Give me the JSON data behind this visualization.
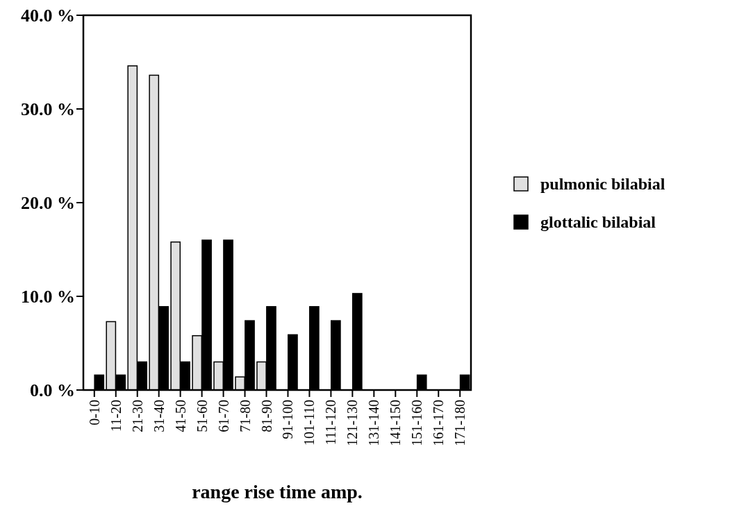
{
  "chart_data": {
    "type": "bar",
    "xlabel": "range rise time amp.",
    "categories": [
      "0-10",
      "11-20",
      "21-30",
      "31-40",
      "41-50",
      "51-60",
      "61-70",
      "71-80",
      "81-90",
      "91-100",
      "101-110",
      "111-120",
      "121-130",
      "131-140",
      "141-150",
      "151-160",
      "161-170",
      "171-180"
    ],
    "series": [
      {
        "name": "pulmonic bilabial",
        "color": "#e0e0e0",
        "values": [
          0,
          7.3,
          34.6,
          33.6,
          15.8,
          5.8,
          3.0,
          1.4,
          3.0,
          0,
          0,
          0,
          0,
          0,
          0,
          0,
          0,
          0
        ]
      },
      {
        "name": "glottalic bilabial",
        "color": "#000000",
        "values": [
          1.6,
          1.6,
          3.0,
          8.9,
          3.0,
          16.0,
          16.0,
          7.4,
          8.9,
          5.9,
          8.9,
          7.4,
          10.3,
          0,
          0,
          1.6,
          0,
          1.6
        ]
      }
    ],
    "ylim": [
      0,
      40
    ],
    "yticks": [
      {
        "value": 0,
        "label": "0.0 %"
      },
      {
        "value": 10,
        "label": "10.0 %"
      },
      {
        "value": 20,
        "label": "20.0 %"
      },
      {
        "value": 30,
        "label": "30.0 %"
      },
      {
        "value": 40,
        "label": "40.0 %"
      }
    ],
    "grid": false,
    "legend": "right"
  }
}
